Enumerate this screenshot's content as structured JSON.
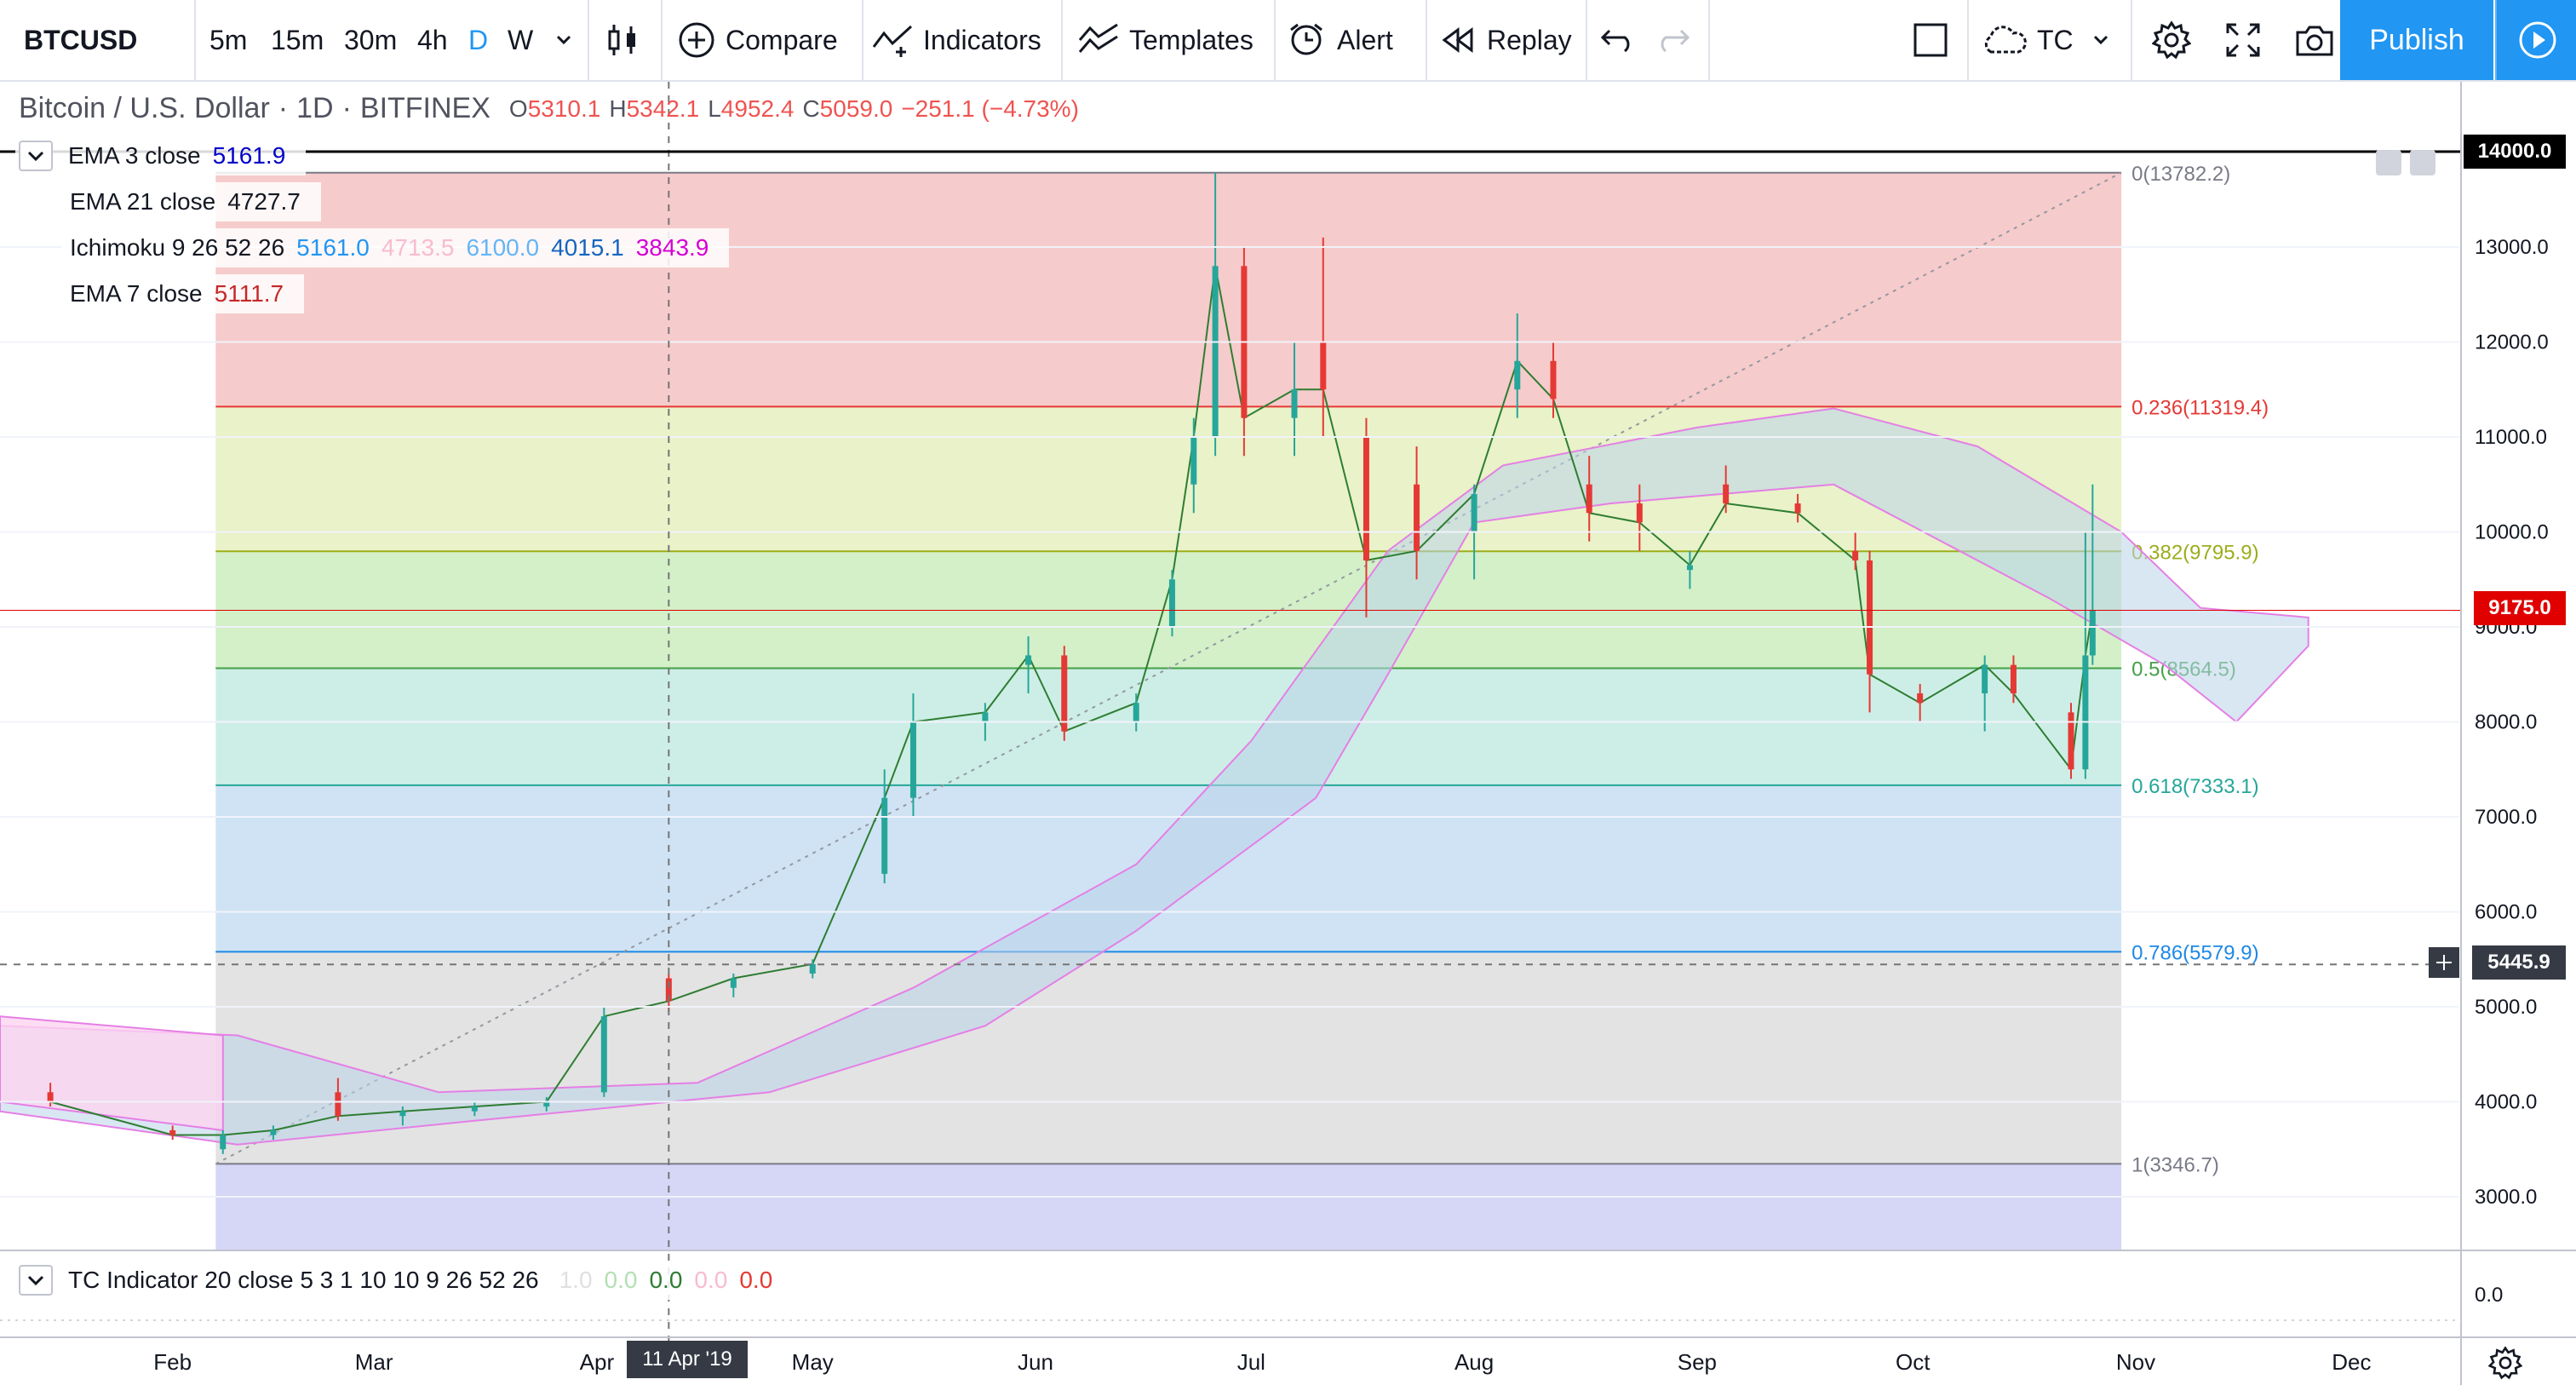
{
  "toolbar": {
    "symbol": "BTCUSD",
    "intervals": [
      "5m",
      "15m",
      "30m",
      "4h",
      "D",
      "W"
    ],
    "active_interval": "D",
    "compare": "Compare",
    "indicators": "Indicators",
    "templates": "Templates",
    "alert": "Alert",
    "replay": "Replay",
    "layout_name": "TC",
    "publish": "Publish"
  },
  "header": {
    "title": "Bitcoin / U.S. Dollar",
    "interval": "1D",
    "exchange": "BITFINEX",
    "open_label": "O",
    "open": "5310.1",
    "high_label": "H",
    "high": "5342.1",
    "low_label": "L",
    "low": "4952.4",
    "close_label": "C",
    "close": "5059.0",
    "change": "−251.1 (−4.73%)"
  },
  "legend": [
    {
      "name": "EMA 3 close",
      "values": [
        {
          "v": "5161.9",
          "color": "#0000c8"
        }
      ]
    },
    {
      "name": "EMA 21 close",
      "values": [
        {
          "v": "4727.7",
          "color": "#131722"
        }
      ]
    },
    {
      "name": "Ichimoku 9 26 52 26",
      "values": [
        {
          "v": "5161.0",
          "color": "#2196f3"
        },
        {
          "v": "4713.5",
          "color": "#f8bbd0"
        },
        {
          "v": "6100.0",
          "color": "#64b5f6"
        },
        {
          "v": "4015.1",
          "color": "#1565c0"
        },
        {
          "v": "3843.9",
          "color": "#d500d5"
        }
      ]
    },
    {
      "name": "EMA 7 close",
      "values": [
        {
          "v": "5111.7",
          "color": "#c62828"
        }
      ]
    }
  ],
  "sub_pane": {
    "name": "TC Indicator 20 close 5 3 1 10 10 9 26 52 26",
    "values": [
      {
        "v": "1.0",
        "color": "#e0e0e0"
      },
      {
        "v": "0.0",
        "color": "#b2dfb2"
      },
      {
        "v": "0.0",
        "color": "#2e7d32"
      },
      {
        "v": "0.0",
        "color": "#f8bbd0"
      },
      {
        "v": "0.0",
        "color": "#e53935"
      }
    ],
    "axis_label": "0.0"
  },
  "price_axis": {
    "ticks": [
      "3000.0",
      "4000.0",
      "5000.0",
      "6000.0",
      "7000.0",
      "8000.0",
      "9000.0",
      "10000.0",
      "11000.0",
      "12000.0",
      "13000.0"
    ],
    "top_label": "14000.0",
    "current_price": "9175.0",
    "crosshair_price": "5445.9"
  },
  "time_axis": {
    "ticks": [
      "Feb",
      "Mar",
      "Apr",
      "May",
      "Jun",
      "Jul",
      "Aug",
      "Sep",
      "Oct",
      "Nov",
      "Dec"
    ],
    "crosshair_date": "11 Apr '19"
  },
  "fib_levels": [
    {
      "ratio": "0",
      "label": "0(13782.2)",
      "price": 13782.2,
      "color": "#787b86"
    },
    {
      "ratio": "0.236",
      "label": "0.236(11319.4)",
      "price": 11319.4,
      "color": "#e53935"
    },
    {
      "ratio": "0.382",
      "label": "0.382(9795.9)",
      "price": 9795.9,
      "color": "#9cad1c"
    },
    {
      "ratio": "0.5",
      "label": "0.5(8564.5)",
      "price": 8564.5,
      "color": "#43a047"
    },
    {
      "ratio": "0.618",
      "label": "0.618(7333.1)",
      "price": 7333.1,
      "color": "#26a69a"
    },
    {
      "ratio": "0.786",
      "label": "0.786(5579.9)",
      "price": 5579.9,
      "color": "#1e88e5"
    },
    {
      "ratio": "1",
      "label": "1(3346.7)",
      "price": 3346.7,
      "color": "#787b86"
    }
  ],
  "colors": {
    "up": "#26a69a",
    "down": "#ef5350",
    "accent": "#2196f3"
  },
  "chart_data": {
    "type": "candlestick",
    "y_range": [
      2400,
      14200
    ],
    "x_range": [
      "2019-01-08",
      "2019-12-16"
    ],
    "series": [
      {
        "name": "BTCUSD",
        "points": [
          [
            "2019-01-15",
            4100,
            4200,
            3950,
            4000
          ],
          [
            "2019-02-01",
            3700,
            3750,
            3600,
            3650
          ],
          [
            "2019-02-08",
            3500,
            3700,
            3450,
            3650
          ],
          [
            "2019-02-15",
            3650,
            3750,
            3600,
            3700
          ],
          [
            "2019-02-24",
            4100,
            4250,
            3800,
            3850
          ],
          [
            "2019-03-05",
            3850,
            3950,
            3750,
            3900
          ],
          [
            "2019-03-15",
            3900,
            4000,
            3850,
            3950
          ],
          [
            "2019-03-25",
            3950,
            4050,
            3900,
            4000
          ],
          [
            "2019-04-02",
            4100,
            5000,
            4050,
            4900
          ],
          [
            "2019-04-11",
            5300,
            5350,
            4950,
            5060
          ],
          [
            "2019-04-20",
            5200,
            5350,
            5100,
            5300
          ],
          [
            "2019-05-01",
            5350,
            5500,
            5300,
            5450
          ],
          [
            "2019-05-11",
            6400,
            7500,
            6300,
            7200
          ],
          [
            "2019-05-15",
            7200,
            8300,
            7000,
            8000
          ],
          [
            "2019-05-25",
            8000,
            8200,
            7800,
            8100
          ],
          [
            "2019-05-31",
            8600,
            8900,
            8300,
            8700
          ],
          [
            "2019-06-05",
            8700,
            8800,
            7800,
            7900
          ],
          [
            "2019-06-15",
            8000,
            8300,
            7900,
            8200
          ],
          [
            "2019-06-20",
            9000,
            9600,
            8900,
            9500
          ],
          [
            "2019-06-23",
            10500,
            11200,
            10200,
            11000
          ],
          [
            "2019-06-26",
            11000,
            13782,
            10800,
            12800
          ],
          [
            "2019-06-30",
            12800,
            13000,
            10800,
            11200
          ],
          [
            "2019-07-07",
            11200,
            12000,
            10800,
            11500
          ],
          [
            "2019-07-11",
            12000,
            13100,
            11000,
            11500
          ],
          [
            "2019-07-17",
            11000,
            11200,
            9100,
            9700
          ],
          [
            "2019-07-24",
            10500,
            10900,
            9500,
            9800
          ],
          [
            "2019-08-01",
            10000,
            10500,
            9500,
            10400
          ],
          [
            "2019-08-07",
            11500,
            12300,
            11200,
            11800
          ],
          [
            "2019-08-12",
            11800,
            12000,
            11200,
            11400
          ],
          [
            "2019-08-17",
            10500,
            10800,
            9900,
            10200
          ],
          [
            "2019-08-24",
            10300,
            10500,
            9800,
            10100
          ],
          [
            "2019-08-31",
            9600,
            9800,
            9400,
            9650
          ],
          [
            "2019-09-05",
            10500,
            10700,
            10200,
            10300
          ],
          [
            "2019-09-15",
            10300,
            10400,
            10100,
            10200
          ],
          [
            "2019-09-23",
            9800,
            10000,
            9600,
            9700
          ],
          [
            "2019-09-25",
            9700,
            9800,
            8100,
            8500
          ],
          [
            "2019-10-02",
            8300,
            8400,
            8000,
            8200
          ],
          [
            "2019-10-11",
            8300,
            8700,
            7900,
            8600
          ],
          [
            "2019-10-15",
            8600,
            8700,
            8200,
            8300
          ],
          [
            "2019-10-23",
            8100,
            8200,
            7400,
            7500
          ],
          [
            "2019-10-25",
            7500,
            10000,
            7400,
            8700
          ],
          [
            "2019-10-26",
            8700,
            10500,
            8600,
            9175
          ]
        ]
      }
    ],
    "current_price": 9175.0,
    "crosshair_price": 5445.9,
    "fib_retracement": {
      "from": [
        "2019-02-07",
        3346.7
      ],
      "to": [
        "2019-10-30",
        13782.2
      ]
    }
  }
}
